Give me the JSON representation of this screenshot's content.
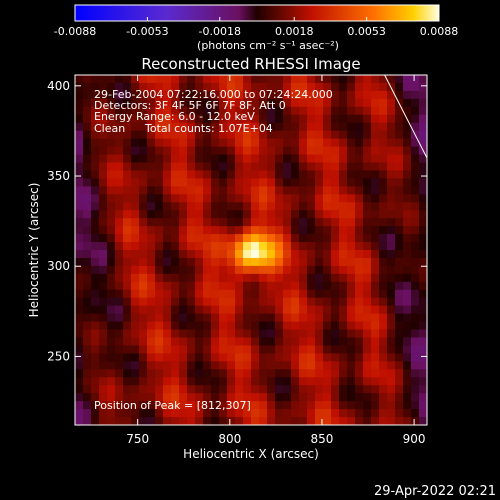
{
  "chart_data": {
    "type": "heatmap",
    "title": "Reconstructed RHESSI Image",
    "xlabel": "Heliocentric X (arcsec)",
    "ylabel": "Heliocentric Y (arcsec)",
    "xlim": [
      716,
      907
    ],
    "ylim": [
      212,
      406
    ],
    "x_ticks": [
      {
        "value": 750,
        "label": "750"
      },
      {
        "value": 800,
        "label": "800"
      },
      {
        "value": 850,
        "label": "850"
      },
      {
        "value": 900,
        "label": "900"
      }
    ],
    "y_ticks": [
      {
        "value": 250,
        "label": "250"
      },
      {
        "value": 300,
        "label": "300"
      },
      {
        "value": 350,
        "label": "350"
      },
      {
        "value": 400,
        "label": "400"
      }
    ],
    "colorbar": {
      "range": [
        -0.0088,
        0.0088
      ],
      "tick_labels": [
        "-0.0088",
        "-0.0053",
        "-0.0018",
        "0.0018",
        "0.0053",
        "0.0088"
      ],
      "units": "(photons cm⁻² s⁻¹ asec⁻²)"
    },
    "annotations": {
      "time": "29-Feb-2004 07:22:16.000 to 07:24:24.000",
      "detectors": "Detectors: 3F 4F 5F 6F 7F 8F, Att 0",
      "energy": "Energy Range: 6.0 - 12.0 keV",
      "clean": "Clean",
      "counts": "Total counts: 1.07E+04",
      "peak": "Position of Peak = [812,307]"
    },
    "peak": {
      "x": 812,
      "y": 307
    },
    "limb_line": [
      [
        884,
        406
      ],
      [
        907,
        360
      ]
    ],
    "footer": "29-Apr-2022 02:21",
    "grid": false,
    "legend": "none"
  }
}
